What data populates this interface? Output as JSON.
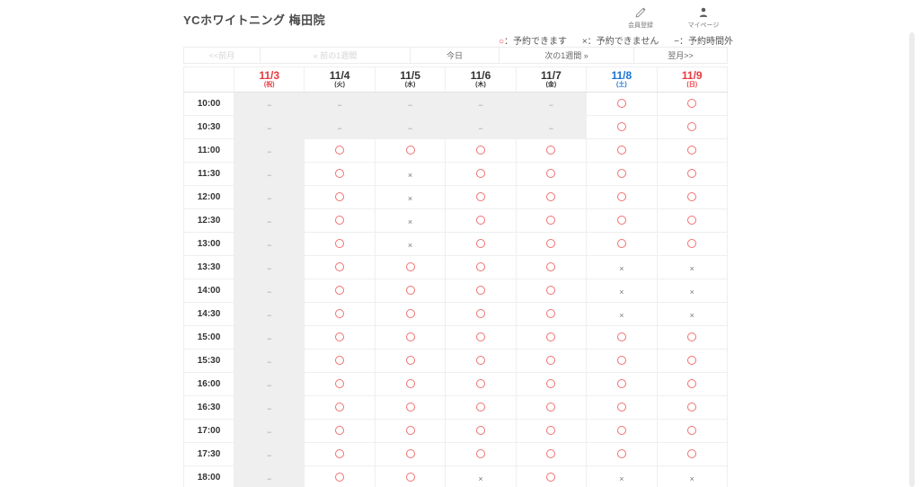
{
  "header": {
    "title": "YCホワイトニング 梅田院",
    "actions": [
      {
        "icon": "pencil-icon",
        "label": "会員登録"
      },
      {
        "icon": "person-icon",
        "label": "マイページ"
      }
    ]
  },
  "legend": {
    "items": [
      {
        "symbol": "○",
        "label": "：予約できます",
        "color": "#e8383d"
      },
      {
        "symbol": "×",
        "label": "：予約できません",
        "color": "#555555"
      },
      {
        "symbol": "−",
        "label": "：予約時間外",
        "color": "#555555"
      }
    ]
  },
  "nav": {
    "prev_month": "<<前月",
    "prev_week": "« 前の1週間",
    "today": "今日",
    "next_week": "次の1週間 »",
    "next_month": "翌月>>"
  },
  "calendar": {
    "columns": [
      {
        "date": "11/3",
        "day": "(祝)",
        "color": "#e8383d"
      },
      {
        "date": "11/4",
        "day": "(火)",
        "color": "#333333"
      },
      {
        "date": "11/5",
        "day": "(水)",
        "color": "#333333"
      },
      {
        "date": "11/6",
        "day": "(木)",
        "color": "#333333"
      },
      {
        "date": "11/7",
        "day": "(金)",
        "color": "#333333"
      },
      {
        "date": "11/8",
        "day": "(土)",
        "color": "#1b74d2"
      },
      {
        "date": "11/9",
        "day": "(日)",
        "color": "#e8383d"
      }
    ],
    "rows": [
      {
        "time": "10:00",
        "cells": [
          "-",
          "-",
          "-",
          "-",
          "-",
          "o",
          "o"
        ]
      },
      {
        "time": "10:30",
        "cells": [
          "-",
          "-",
          "-",
          "-",
          "-",
          "o",
          "o"
        ]
      },
      {
        "time": "11:00",
        "cells": [
          "-",
          "o",
          "o",
          "o",
          "o",
          "o",
          "o"
        ]
      },
      {
        "time": "11:30",
        "cells": [
          "-",
          "o",
          "x",
          "o",
          "o",
          "o",
          "o"
        ]
      },
      {
        "time": "12:00",
        "cells": [
          "-",
          "o",
          "x",
          "o",
          "o",
          "o",
          "o"
        ]
      },
      {
        "time": "12:30",
        "cells": [
          "-",
          "o",
          "x",
          "o",
          "o",
          "o",
          "o"
        ]
      },
      {
        "time": "13:00",
        "cells": [
          "-",
          "o",
          "x",
          "o",
          "o",
          "o",
          "o"
        ]
      },
      {
        "time": "13:30",
        "cells": [
          "-",
          "o",
          "o",
          "o",
          "o",
          "x",
          "x"
        ]
      },
      {
        "time": "14:00",
        "cells": [
          "-",
          "o",
          "o",
          "o",
          "o",
          "x",
          "x"
        ]
      },
      {
        "time": "14:30",
        "cells": [
          "-",
          "o",
          "o",
          "o",
          "o",
          "x",
          "x"
        ]
      },
      {
        "time": "15:00",
        "cells": [
          "-",
          "o",
          "o",
          "o",
          "o",
          "o",
          "o"
        ]
      },
      {
        "time": "15:30",
        "cells": [
          "-",
          "o",
          "o",
          "o",
          "o",
          "o",
          "o"
        ]
      },
      {
        "time": "16:00",
        "cells": [
          "-",
          "o",
          "o",
          "o",
          "o",
          "o",
          "o"
        ]
      },
      {
        "time": "16:30",
        "cells": [
          "-",
          "o",
          "o",
          "o",
          "o",
          "o",
          "o"
        ]
      },
      {
        "time": "17:00",
        "cells": [
          "-",
          "o",
          "o",
          "o",
          "o",
          "o",
          "o"
        ]
      },
      {
        "time": "17:30",
        "cells": [
          "-",
          "o",
          "o",
          "o",
          "o",
          "o",
          "o"
        ]
      },
      {
        "time": "18:00",
        "cells": [
          "-",
          "o",
          "o",
          "x",
          "o",
          "x",
          "x"
        ]
      }
    ]
  },
  "colors": {
    "available_circle": "#ee7170",
    "closed_cell_bg": "#efefef",
    "holiday_red": "#e8383d",
    "saturday_blue": "#1b74d2"
  }
}
